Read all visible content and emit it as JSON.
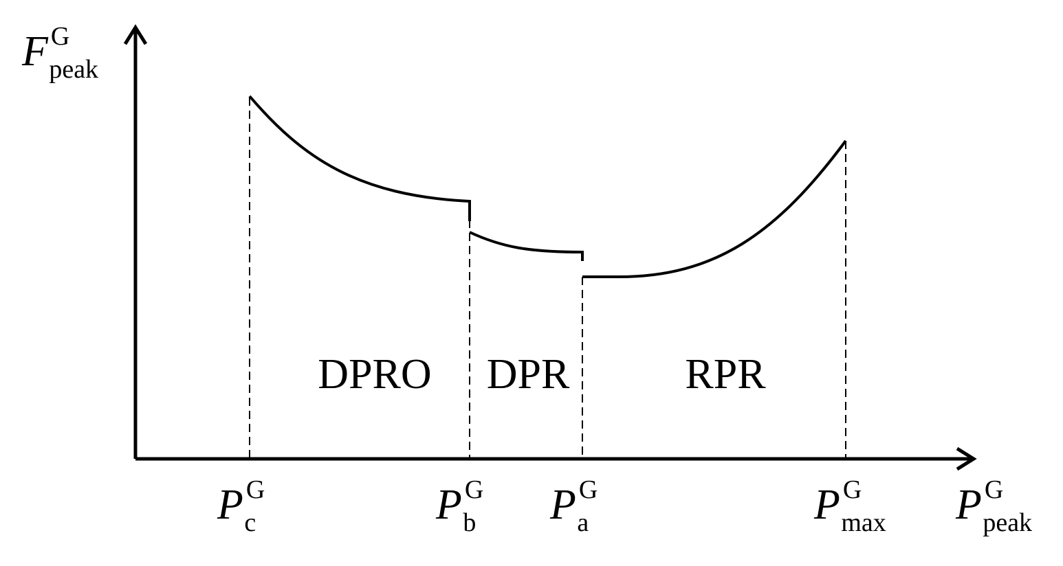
{
  "axes": {
    "y_label": {
      "base": "F",
      "sup": "G",
      "sub": "peak"
    },
    "x_label": {
      "base": "P",
      "sup": "G",
      "sub": "peak"
    }
  },
  "ticks": [
    {
      "base": "P",
      "sup": "G",
      "sub": "c"
    },
    {
      "base": "P",
      "sup": "G",
      "sub": "b"
    },
    {
      "base": "P",
      "sup": "G",
      "sub": "a"
    },
    {
      "base": "P",
      "sup": "G",
      "sub": "max"
    }
  ],
  "regions": [
    "DPRO",
    "DPR",
    "RPR"
  ]
}
